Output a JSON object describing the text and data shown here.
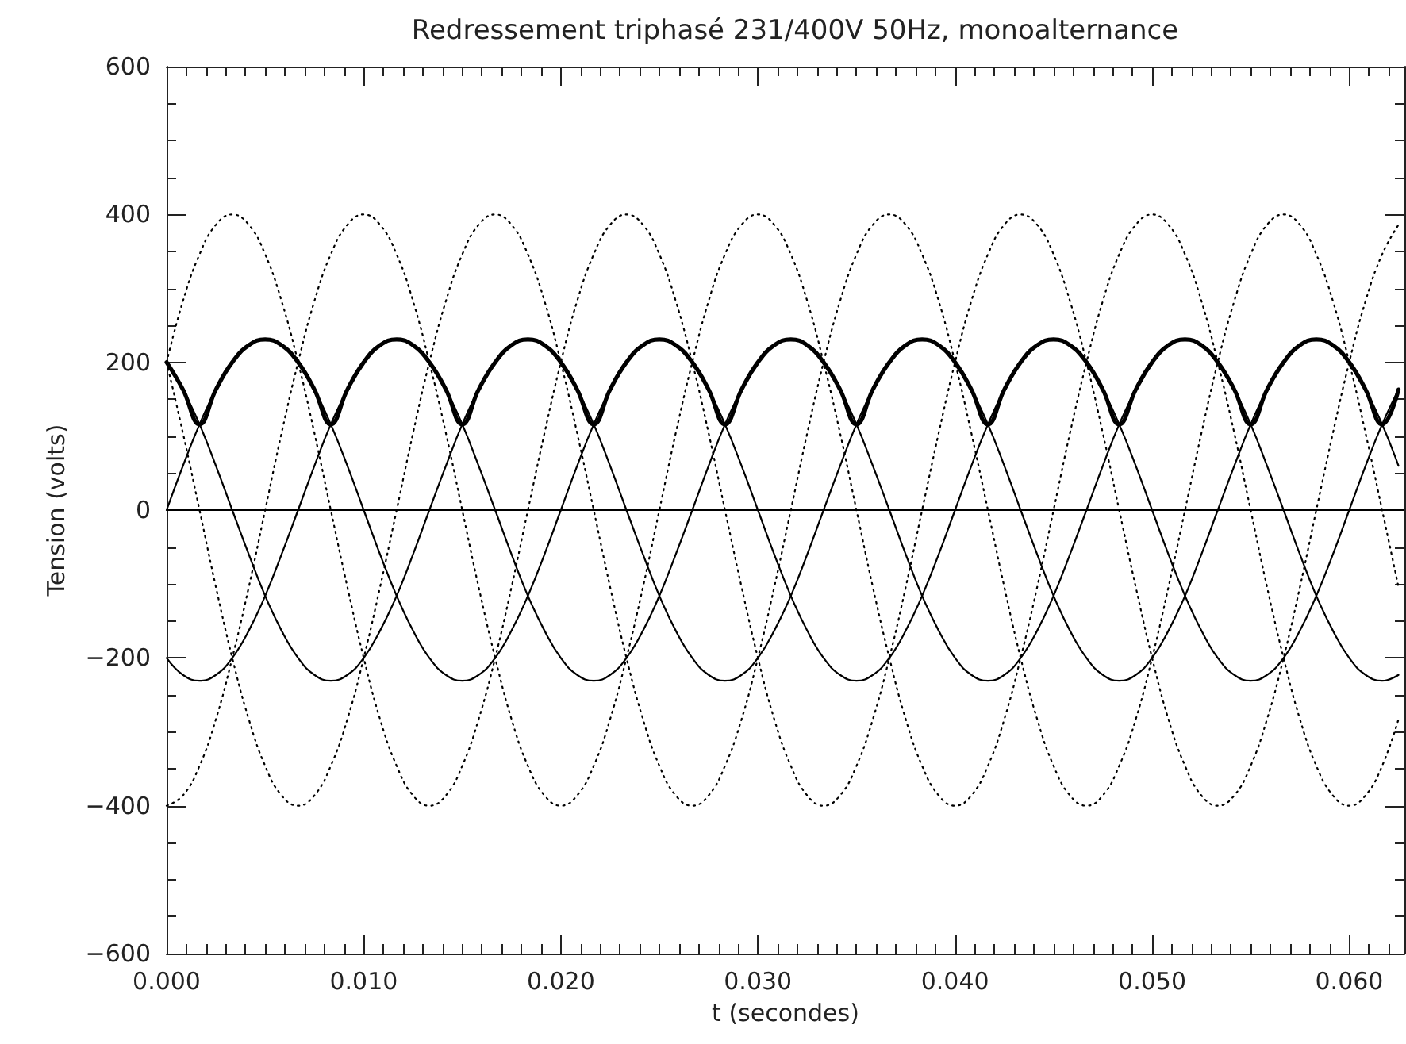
{
  "chart_data": {
    "type": "line",
    "title": "Redressement triphasé 231/400V 50Hz, monoalternance",
    "xlabel": "t (secondes)",
    "ylabel": "Tension (volts)",
    "x": [
      0,
      0.00083,
      0.00167,
      0.0025,
      0.00333,
      0.00417,
      0.005,
      0.00583,
      0.00667,
      0.0075,
      0.00833,
      0.00917,
      0.01,
      0.01083,
      0.01167,
      0.0125,
      0.01333,
      0.01417,
      0.015,
      0.01583,
      0.01667,
      0.0175,
      0.01833,
      0.01917,
      0.02,
      0.02083,
      0.02167,
      0.0225,
      0.02333,
      0.02417,
      0.025,
      0.02583,
      0.02667,
      0.0275,
      0.02833,
      0.02917,
      0.03,
      0.03083,
      0.03167,
      0.0325,
      0.03333,
      0.03417,
      0.035,
      0.03583,
      0.03667,
      0.0375,
      0.03833,
      0.03917,
      0.04,
      0.04083,
      0.04167,
      0.0425,
      0.04333,
      0.04417,
      0.045,
      0.04583,
      0.04667,
      0.0475,
      0.04833,
      0.04917,
      0.05,
      0.05083,
      0.05167,
      0.0525,
      0.05333,
      0.05417,
      0.055,
      0.05583,
      0.05667,
      0.0575,
      0.05833,
      0.05917,
      0.06,
      0.06083,
      0.06167,
      0.0625
    ],
    "series": [
      {
        "color": "#000000",
        "line_style": "dotted",
        "values": [
          200,
          283,
          346,
          386,
          400,
          386,
          346,
          283,
          200,
          104,
          0,
          -104,
          -200,
          -283,
          -346,
          -386,
          -400,
          -386,
          -346,
          -283,
          -200,
          -104,
          0,
          104,
          200,
          283,
          346,
          386,
          400,
          386,
          346,
          283,
          200,
          104,
          0,
          -104,
          -200,
          -283,
          -346,
          -386,
          -400,
          -386,
          -346,
          -283,
          -200,
          -104,
          0,
          104,
          200,
          283,
          346,
          386,
          400,
          386,
          346,
          283,
          200,
          104,
          0,
          -104,
          -200,
          -283,
          -346,
          -386,
          -400,
          -386,
          -346,
          -283,
          -200,
          -104,
          0,
          104,
          200,
          283,
          346,
          386
        ]
      },
      {
        "color": "#000000",
        "line_style": "dotted",
        "values": [
          200,
          104,
          0,
          -104,
          -200,
          -283,
          -346,
          -386,
          -400,
          -386,
          -346,
          -283,
          -200,
          -104,
          0,
          104,
          200,
          283,
          346,
          386,
          400,
          386,
          346,
          283,
          200,
          104,
          0,
          -104,
          -200,
          -283,
          -346,
          -386,
          -400,
          -386,
          -346,
          -283,
          -200,
          -104,
          0,
          104,
          200,
          283,
          346,
          386,
          400,
          386,
          346,
          283,
          200,
          104,
          0,
          -104,
          -200,
          -283,
          -346,
          -386,
          -400,
          -386,
          -346,
          -283,
          -200,
          -104,
          0,
          104,
          200,
          283,
          346,
          386,
          400,
          386,
          346,
          283,
          200,
          104,
          0,
          -104
        ]
      },
      {
        "color": "#000000",
        "line_style": "dotted",
        "values": [
          -400,
          -386,
          -346,
          -283,
          -200,
          -104,
          0,
          104,
          200,
          283,
          346,
          386,
          400,
          386,
          346,
          283,
          200,
          104,
          0,
          -104,
          -200,
          -283,
          -346,
          -386,
          -400,
          -386,
          -346,
          -283,
          -200,
          -104,
          0,
          104,
          200,
          283,
          346,
          386,
          400,
          386,
          346,
          283,
          200,
          104,
          0,
          -104,
          -200,
          -283,
          -346,
          -386,
          -400,
          -386,
          -346,
          -283,
          -200,
          -104,
          0,
          104,
          200,
          283,
          346,
          386,
          400,
          386,
          346,
          283,
          200,
          104,
          0,
          -104,
          -200,
          -283,
          -346,
          -386,
          -400,
          -386,
          -346,
          -283
        ]
      },
      {
        "color": "#000000",
        "line_style": "solid",
        "values": [
          0,
          60,
          116,
          163,
          200,
          223,
          231,
          223,
          200,
          163,
          116,
          60,
          0,
          -60,
          -116,
          -163,
          -200,
          -223,
          -231,
          -223,
          -200,
          -163,
          -116,
          -60,
          0,
          60,
          116,
          163,
          200,
          223,
          231,
          223,
          200,
          163,
          116,
          60,
          0,
          -60,
          -116,
          -163,
          -200,
          -223,
          -231,
          -223,
          -200,
          -163,
          -116,
          -60,
          0,
          60,
          116,
          163,
          200,
          223,
          231,
          223,
          200,
          163,
          116,
          60,
          0,
          -60,
          -116,
          -163,
          -200,
          -223,
          -231,
          -223,
          -200,
          -163,
          -116,
          -60,
          0,
          60,
          116,
          163
        ]
      },
      {
        "color": "#000000",
        "line_style": "solid",
        "values": [
          200,
          163,
          116,
          60,
          0,
          -60,
          -116,
          -163,
          -200,
          -223,
          -231,
          -223,
          -200,
          -163,
          -116,
          -60,
          0,
          60,
          116,
          163,
          200,
          223,
          231,
          223,
          200,
          163,
          116,
          60,
          0,
          -60,
          -116,
          -163,
          -200,
          -223,
          -231,
          -223,
          -200,
          -163,
          -116,
          -60,
          0,
          60,
          116,
          163,
          200,
          223,
          231,
          223,
          200,
          163,
          116,
          60,
          0,
          -60,
          -116,
          -163,
          -200,
          -223,
          -231,
          -223,
          -200,
          -163,
          -116,
          -60,
          0,
          60,
          116,
          163,
          200,
          223,
          231,
          223,
          200,
          163,
          116,
          60
        ]
      },
      {
        "color": "#000000",
        "line_style": "solid",
        "values": [
          -200,
          -223,
          -231,
          -223,
          -200,
          -163,
          -116,
          -60,
          0,
          60,
          116,
          163,
          200,
          223,
          231,
          223,
          200,
          163,
          116,
          60,
          0,
          -60,
          -116,
          -163,
          -200,
          -223,
          -231,
          -223,
          -200,
          -163,
          -116,
          -60,
          0,
          60,
          116,
          163,
          200,
          223,
          231,
          223,
          200,
          163,
          116,
          60,
          0,
          -60,
          -116,
          -163,
          -200,
          -223,
          -231,
          -223,
          -200,
          -163,
          -116,
          -60,
          0,
          60,
          116,
          163,
          200,
          223,
          231,
          223,
          200,
          163,
          116,
          60,
          0,
          -60,
          -116,
          -163,
          -200,
          -223,
          -231,
          -223
        ]
      },
      {
        "color": "#000000",
        "line_style": "solid",
        "values": [
          200,
          163,
          116,
          163,
          200,
          223,
          231,
          223,
          200,
          163,
          116,
          163,
          200,
          223,
          231,
          223,
          200,
          163,
          116,
          163,
          200,
          223,
          231,
          223,
          200,
          163,
          116,
          163,
          200,
          223,
          231,
          223,
          200,
          163,
          116,
          163,
          200,
          223,
          231,
          223,
          200,
          163,
          116,
          163,
          200,
          223,
          231,
          223,
          200,
          163,
          116,
          163,
          200,
          223,
          231,
          223,
          200,
          163,
          116,
          163,
          200,
          223,
          231,
          223,
          200,
          163,
          116,
          163,
          200,
          223,
          231,
          223,
          200,
          163,
          116,
          163
        ]
      }
    ],
    "xlim": [
      0,
      0.0628
    ],
    "xticks": [
      {
        "value": 0,
        "label": "0.000"
      },
      {
        "value": 0.01,
        "label": "0.010"
      },
      {
        "value": 0.02,
        "label": "0.020"
      },
      {
        "value": 0.03,
        "label": "0.030"
      },
      {
        "value": 0.04,
        "label": "0.040"
      },
      {
        "value": 0.05,
        "label": "0.050"
      },
      {
        "value": 0.06,
        "label": "0.060"
      }
    ],
    "ylim": [
      -600,
      600
    ],
    "yticks": [
      {
        "value": -600,
        "label": "−600"
      },
      {
        "value": -400,
        "label": "−400"
      },
      {
        "value": -200,
        "label": "−200"
      },
      0,
      200,
      400,
      600
    ],
    "ref_lines": [
      {
        "axis": "y",
        "value": 0,
        "color": "#000000",
        "line_style": "solid"
      }
    ],
    "marker": "none"
  }
}
